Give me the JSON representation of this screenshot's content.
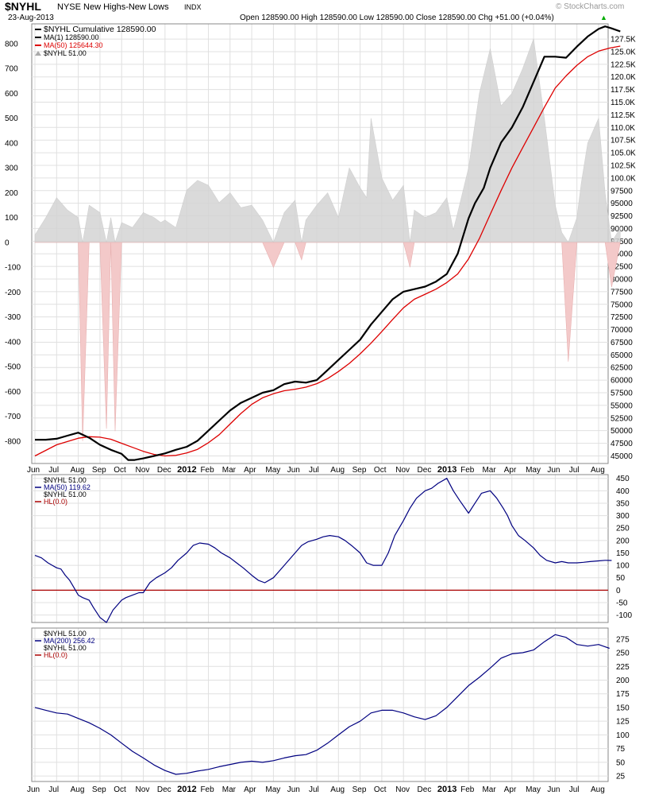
{
  "header": {
    "symbol": "$NYHL",
    "name": "NYSE New Highs-New Lows",
    "exchange": "INDX",
    "date": "23-Aug-2013",
    "quote": "Open 128590.00 High 128590.00 Low 128590.00 Close 128590.00 Chg +51.00 (+0.04%)",
    "watermark": "© StockCharts.com",
    "accent_up": "#00aa00"
  },
  "colors": {
    "cumulative": "#000000",
    "ma50": "#dd0000",
    "bars_pos": "#d4d4d4",
    "bars_neg": "#f3c9c9",
    "ma_blue": "#000080",
    "zero_line": "#aa0000",
    "grid": "#e0e0e0"
  },
  "chart_data": [
    {
      "type": "line",
      "panel": "main",
      "legend": [
        "$NYHL Cumulative 128590.00",
        "MA(1) 128590.00",
        "MA(50) 125644.30",
        "$NYHL 51.00"
      ],
      "left_axis_ticks": [
        "800",
        "700",
        "600",
        "500",
        "400",
        "300",
        "200",
        "100",
        "0",
        "-100",
        "-200",
        "-300",
        "-400",
        "-500",
        "-600",
        "-700",
        "-800"
      ],
      "right_axis_ticks": [
        "127.5K",
        "125.0K",
        "122.5K",
        "120.0K",
        "117.5K",
        "115.0K",
        "112.5K",
        "110.0K",
        "107.5K",
        "105.0K",
        "102.5K",
        "100.0K",
        "97500",
        "95000",
        "92500",
        "90000",
        "87500",
        "85000",
        "82500",
        "80000",
        "77500",
        "75000",
        "72500",
        "70000",
        "67500",
        "65000",
        "62500",
        "60000",
        "57500",
        "55000",
        "52500",
        "50000",
        "47500",
        "45000"
      ],
      "right_ylim": [
        43500,
        130500
      ],
      "left_ylim": [
        -890,
        880
      ],
      "x_labels": [
        "Jun",
        "Jul",
        "Aug",
        "Sep",
        "Oct",
        "Nov",
        "Dec",
        "2012",
        "Feb",
        "Mar",
        "Apr",
        "May",
        "Jun",
        "Jul",
        "Aug",
        "Sep",
        "Oct",
        "Nov",
        "Dec",
        "2013",
        "Feb",
        "Mar",
        "Apr",
        "May",
        "Jun",
        "Jul",
        "Aug"
      ],
      "series": [
        {
          "name": "MA(1)",
          "axis": "right",
          "x": [
            0,
            0.5,
            1,
            1.5,
            2,
            2.5,
            3,
            3.5,
            4,
            4.3,
            4.6,
            5,
            5.5,
            6,
            6.5,
            7,
            7.5,
            8,
            8.5,
            9,
            9.5,
            10,
            10.5,
            11,
            11.5,
            12,
            12.5,
            13,
            13.5,
            14,
            14.5,
            15,
            15.5,
            16,
            16.5,
            17,
            17.5,
            18,
            18.5,
            19,
            19.5,
            20,
            20.3,
            20.7,
            21,
            21.5,
            22,
            22.5,
            23,
            23.5,
            24,
            24.5,
            25,
            25.5,
            26,
            26.3,
            26.6,
            27
          ],
          "values": [
            48200,
            48200,
            48400,
            49000,
            49600,
            48600,
            47200,
            46200,
            45400,
            44200,
            44200,
            44500,
            45000,
            45500,
            46200,
            46800,
            48000,
            50000,
            52000,
            54000,
            55500,
            56500,
            57500,
            58000,
            59200,
            59700,
            59500,
            60000,
            62000,
            64000,
            66000,
            68000,
            71000,
            73500,
            76000,
            77500,
            78000,
            78500,
            79500,
            81000,
            85000,
            92000,
            95000,
            98000,
            102000,
            107000,
            110000,
            114000,
            119000,
            124000,
            124000,
            123800,
            126000,
            128000,
            129500,
            130000,
            129600,
            129000
          ]
        },
        {
          "name": "MA(50)",
          "axis": "right",
          "x": [
            0,
            1,
            2,
            2.5,
            3,
            3.5,
            4,
            4.5,
            5,
            5.5,
            6,
            6.5,
            7,
            7.5,
            8,
            8.5,
            9,
            9.5,
            10,
            10.5,
            11,
            11.5,
            12,
            12.5,
            13,
            13.5,
            14,
            14.5,
            15,
            15.5,
            16,
            16.5,
            17,
            17.5,
            18,
            18.5,
            19,
            19.5,
            20,
            20.5,
            21,
            21.5,
            22,
            22.5,
            23,
            23.5,
            24,
            24.5,
            25,
            25.5,
            26,
            26.5,
            27
          ],
          "values": [
            45000,
            47200,
            48500,
            48800,
            48700,
            48300,
            47500,
            46700,
            45900,
            45300,
            45000,
            45100,
            45600,
            46300,
            47600,
            49200,
            51300,
            53400,
            55200,
            56500,
            57300,
            57900,
            58200,
            58600,
            59300,
            60300,
            61700,
            63300,
            65200,
            67300,
            69600,
            72000,
            74300,
            76000,
            77000,
            78000,
            79300,
            81000,
            84000,
            88000,
            92800,
            97500,
            102000,
            106000,
            110000,
            114000,
            117800,
            120200,
            122300,
            124000,
            125100,
            125700,
            126100
          ]
        }
      ],
      "bars": {
        "name": "$NYHL",
        "axis": "left",
        "x": [
          0,
          0.5,
          1,
          1.5,
          2,
          2.2,
          2.5,
          3,
          3.3,
          3.5,
          3.7,
          4,
          4.5,
          5,
          5.5,
          5.8,
          6,
          6.5,
          7,
          7.5,
          8,
          8.5,
          9,
          9.5,
          10,
          10.5,
          11,
          11.5,
          12,
          12.3,
          12.5,
          13,
          13.5,
          14,
          14.5,
          15,
          15.3,
          15.5,
          16,
          16.5,
          17,
          17.3,
          17.5,
          18,
          18.5,
          19,
          19.3,
          19.5,
          20,
          20.5,
          21,
          21.5,
          22,
          22.5,
          23,
          23.5,
          24,
          24.3,
          24.6,
          25,
          25.2,
          25.5,
          26,
          26.3,
          26.6,
          27
        ],
        "values": [
          30,
          100,
          180,
          130,
          100,
          -800,
          150,
          120,
          -750,
          100,
          -760,
          80,
          60,
          120,
          100,
          80,
          90,
          60,
          210,
          250,
          230,
          160,
          200,
          140,
          150,
          90,
          -100,
          120,
          170,
          -70,
          90,
          150,
          200,
          100,
          300,
          220,
          180,
          500,
          260,
          170,
          230,
          -100,
          130,
          100,
          120,
          180,
          50,
          120,
          300,
          600,
          780,
          550,
          600,
          700,
          820,
          500,
          150,
          40,
          -480,
          100,
          240,
          400,
          500,
          200,
          -180,
          60
        ]
      }
    },
    {
      "type": "line",
      "panel": "ma50",
      "legend": [
        "$NYHL 51.00",
        "MA(50) 119.62",
        "$NYHL 51.00",
        "HL(0.0)"
      ],
      "y_ticks": [
        "450",
        "400",
        "350",
        "300",
        "250",
        "200",
        "150",
        "100",
        "50",
        "0",
        "-50",
        "-100"
      ],
      "ylim": [
        -130,
        465
      ],
      "series": [
        {
          "name": "MA(50)",
          "x": [
            0,
            0.3,
            0.6,
            0.8,
            1,
            1.2,
            1.4,
            1.6,
            1.8,
            2,
            2.2,
            2.5,
            2.7,
            3,
            3.3,
            3.6,
            3.8,
            4,
            4.2,
            4.5,
            4.8,
            5,
            5.3,
            5.6,
            6,
            6.3,
            6.6,
            7,
            7.3,
            7.6,
            8,
            8.3,
            8.6,
            9,
            9.3,
            9.6,
            10,
            10.3,
            10.6,
            11,
            11.3,
            11.6,
            12,
            12.3,
            12.6,
            13,
            13.3,
            13.6,
            14,
            14.3,
            14.6,
            15,
            15.3,
            15.6,
            16,
            16.3,
            16.6,
            17,
            17.3,
            17.6,
            18,
            18.3,
            18.6,
            19,
            19.3,
            19.6,
            20,
            20.3,
            20.6,
            21,
            21.3,
            21.6,
            21.8,
            22,
            22.3,
            22.6,
            23,
            23.3,
            23.6,
            24,
            24.3,
            24.6,
            25,
            25.3,
            25.6,
            26,
            26.3,
            26.6
          ],
          "values": [
            140,
            130,
            110,
            100,
            90,
            85,
            60,
            40,
            10,
            -20,
            -30,
            -40,
            -70,
            -110,
            -130,
            -80,
            -60,
            -40,
            -30,
            -20,
            -10,
            -10,
            30,
            50,
            70,
            90,
            120,
            150,
            180,
            190,
            185,
            170,
            150,
            130,
            110,
            90,
            60,
            40,
            30,
            50,
            80,
            110,
            150,
            180,
            195,
            205,
            215,
            220,
            215,
            200,
            180,
            150,
            110,
            100,
            100,
            150,
            220,
            280,
            330,
            370,
            400,
            410,
            430,
            450,
            400,
            360,
            310,
            350,
            390,
            400,
            370,
            330,
            300,
            260,
            220,
            200,
            170,
            140,
            120,
            110,
            115,
            110,
            110,
            112,
            115,
            118,
            120,
            119.6
          ]
        }
      ],
      "hline": 0
    },
    {
      "type": "line",
      "panel": "ma200",
      "legend": [
        "$NYHL 51.00",
        "MA(200) 256.42",
        "$NYHL 51.00",
        "HL(0.0)"
      ],
      "y_ticks": [
        "275",
        "250",
        "225",
        "200",
        "175",
        "150",
        "125",
        "100",
        "75",
        "50",
        "25"
      ],
      "ylim": [
        15,
        295
      ],
      "series": [
        {
          "name": "MA(200)",
          "x": [
            0,
            0.5,
            1,
            1.5,
            2,
            2.5,
            3,
            3.5,
            4,
            4.5,
            5,
            5.5,
            6,
            6.5,
            7,
            7.5,
            8,
            8.5,
            9,
            9.5,
            10,
            10.5,
            11,
            11.5,
            12,
            12.5,
            13,
            13.5,
            14,
            14.5,
            15,
            15.5,
            16,
            16.5,
            17,
            17.5,
            18,
            18.5,
            19,
            19.5,
            20,
            20.5,
            21,
            21.5,
            22,
            22.5,
            23,
            23.5,
            24,
            24.5,
            25,
            25.5,
            26,
            26.5
          ],
          "values": [
            150,
            145,
            140,
            138,
            130,
            122,
            112,
            100,
            85,
            70,
            58,
            45,
            35,
            28,
            30,
            34,
            37,
            42,
            46,
            50,
            52,
            50,
            53,
            58,
            62,
            64,
            72,
            85,
            100,
            115,
            125,
            140,
            145,
            145,
            140,
            133,
            128,
            135,
            150,
            170,
            190,
            205,
            222,
            240,
            248,
            250,
            255,
            270,
            283,
            278,
            265,
            262,
            265,
            258
          ]
        }
      ],
      "hline": 0
    }
  ]
}
